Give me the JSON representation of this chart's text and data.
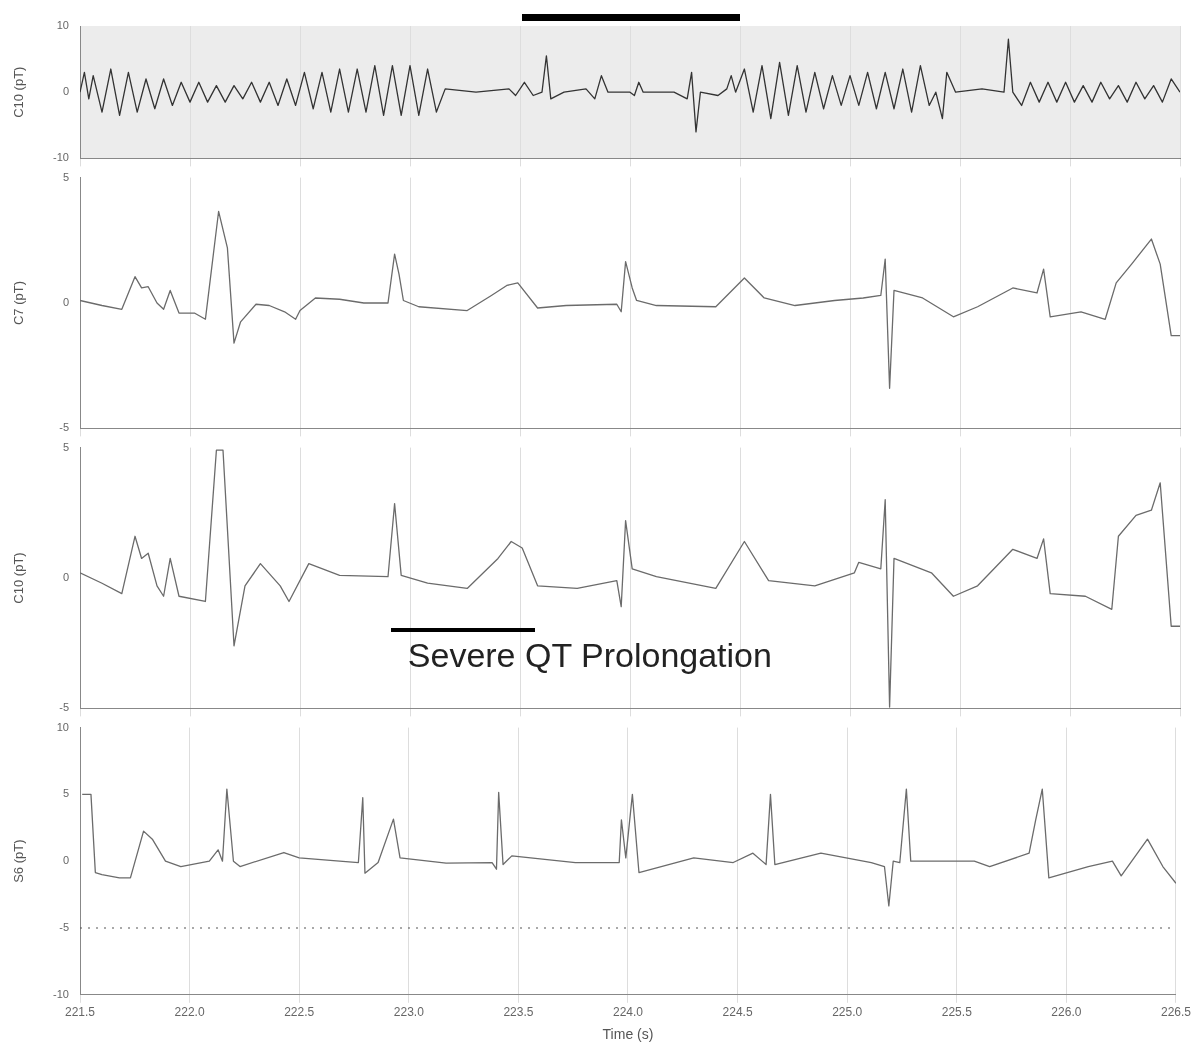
{
  "chart_data": [
    {
      "type": "line",
      "ylabel": "C10 (pT)",
      "xlim": [
        221.5,
        226.5
      ],
      "ylim": [
        -10,
        10
      ],
      "yticks": [
        -10,
        0,
        10
      ],
      "tick_labels": "y",
      "grid": "x",
      "xticks": [
        221.5,
        222,
        222.5,
        223,
        223.5,
        224,
        224.5,
        225,
        225.5,
        226,
        226.5
      ],
      "series": [
        {
          "color": "#333333",
          "x": [
            221.5,
            221.52,
            221.54,
            221.56,
            221.6,
            221.64,
            221.68,
            221.72,
            221.76,
            221.8,
            221.84,
            221.88,
            221.92,
            221.96,
            222.0,
            222.04,
            222.08,
            222.12,
            222.16,
            222.2,
            222.24,
            222.28,
            222.32,
            222.36,
            222.4,
            222.44,
            222.48,
            222.52,
            222.56,
            222.6,
            222.64,
            222.68,
            222.72,
            222.76,
            222.8,
            222.84,
            222.88,
            222.92,
            222.96,
            223.0,
            223.04,
            223.08,
            223.12,
            223.16,
            223.3,
            223.45,
            223.48,
            223.52,
            223.56,
            223.6,
            223.62,
            223.64,
            223.7,
            223.8,
            223.84,
            223.87,
            223.9,
            224.0,
            224.02,
            224.04,
            224.06,
            224.2,
            224.26,
            224.28,
            224.3,
            224.32,
            224.4,
            224.44,
            224.46,
            224.48,
            224.52,
            224.56,
            224.6,
            224.64,
            224.68,
            224.72,
            224.76,
            224.8,
            224.84,
            224.88,
            224.92,
            224.96,
            225.0,
            225.04,
            225.08,
            225.12,
            225.16,
            225.2,
            225.24,
            225.28,
            225.32,
            225.36,
            225.39,
            225.42,
            225.44,
            225.48,
            225.6,
            225.7,
            225.72,
            225.74,
            225.78,
            225.82,
            225.86,
            225.9,
            225.94,
            225.98,
            226.02,
            226.06,
            226.1,
            226.14,
            226.18,
            226.22,
            226.26,
            226.3,
            226.34,
            226.38,
            226.42,
            226.46,
            226.5
          ],
          "values": [
            0,
            3,
            -1,
            2.5,
            -3,
            3.5,
            -3.5,
            3,
            -3,
            2,
            -2.5,
            2,
            -2,
            1.5,
            -1.5,
            1.5,
            -1.5,
            1,
            -1.5,
            1,
            -1,
            1.5,
            -1.5,
            1.5,
            -2,
            2,
            -2,
            3,
            -2.5,
            3,
            -3,
            3.5,
            -3,
            3.5,
            -3,
            4,
            -3.5,
            4,
            -3.5,
            4,
            -3.5,
            3.5,
            -3,
            0.5,
            0,
            0.5,
            -0.5,
            1.5,
            -0.5,
            0,
            5.5,
            -1,
            0,
            0.5,
            -1,
            2.5,
            0,
            0,
            -0.5,
            1.5,
            0,
            0,
            -1,
            3,
            -6,
            0,
            -0.5,
            0.5,
            2.5,
            0,
            3.5,
            -3,
            4,
            -4,
            4.5,
            -3.5,
            4,
            -3,
            3,
            -2.5,
            2.5,
            -2,
            2.5,
            -2,
            3,
            -2.5,
            3,
            -2.5,
            3.5,
            -3,
            4,
            -2,
            0,
            -4,
            3,
            0,
            0.5,
            0,
            8,
            0,
            -2,
            1.5,
            -1.5,
            1.5,
            -1.5,
            1.5,
            -1.5,
            1,
            -1.5,
            1.5,
            -1,
            1,
            -1.5,
            1.5,
            -1,
            1,
            -1.5,
            2,
            0
          ]
        }
      ]
    },
    {
      "type": "line",
      "ylabel": "C7 (pT)",
      "xlim": [
        221.5,
        226.5
      ],
      "ylim": [
        -5,
        5
      ],
      "yticks": [
        -5,
        0,
        5
      ],
      "tick_labels": "y",
      "grid": "x",
      "xticks": [
        221.5,
        222,
        222.5,
        223,
        223.5,
        224,
        224.5,
        225,
        225.5,
        226,
        226.5
      ],
      "series": [
        {
          "color": "#6b6b6b",
          "x": [
            221.5,
            221.6,
            221.69,
            221.75,
            221.78,
            221.81,
            221.85,
            221.88,
            221.91,
            221.95,
            222.02,
            222.07,
            222.13,
            222.17,
            222.2,
            222.23,
            222.3,
            222.36,
            222.43,
            222.48,
            222.5,
            222.57,
            222.68,
            222.79,
            222.9,
            222.93,
            222.95,
            222.97,
            223.04,
            223.26,
            223.37,
            223.44,
            223.49,
            223.58,
            223.71,
            223.94,
            223.96,
            223.98,
            224.01,
            224.03,
            224.12,
            224.39,
            224.52,
            224.61,
            224.75,
            224.93,
            225.06,
            225.14,
            225.16,
            225.18,
            225.2,
            225.33,
            225.47,
            225.58,
            225.74,
            225.85,
            225.88,
            225.91,
            226.05,
            226.16,
            226.21,
            226.28,
            226.37,
            226.41,
            226.46,
            226.5
          ],
          "values": [
            0.1,
            -0.1,
            -0.25,
            1.05,
            0.6,
            0.65,
            0,
            -0.25,
            0.5,
            -0.4,
            -0.4,
            -0.65,
            3.65,
            2.2,
            -1.6,
            -0.75,
            -0.05,
            -0.1,
            -0.35,
            -0.65,
            -0.3,
            0.2,
            0.15,
            0,
            0,
            1.95,
            1.15,
            0.1,
            -0.15,
            -0.3,
            0.3,
            0.7,
            0.8,
            -0.2,
            -0.1,
            -0.05,
            -0.35,
            1.65,
            0.6,
            0.1,
            -0.1,
            -0.15,
            1,
            0.2,
            -0.1,
            0.1,
            0.2,
            0.3,
            1.75,
            -3.4,
            0.5,
            0.2,
            -0.55,
            -0.15,
            0.6,
            0.4,
            1.35,
            -0.55,
            -0.35,
            -0.65,
            0.8,
            1.55,
            2.55,
            1.55,
            -1.3,
            -1.3
          ]
        }
      ]
    },
    {
      "type": "line",
      "ylabel": "C10 (pT)",
      "xlim": [
        221.5,
        226.5
      ],
      "ylim": [
        -5,
        5
      ],
      "yticks": [
        -5,
        0,
        5
      ],
      "tick_labels": "y",
      "grid": "x",
      "xticks": [
        221.5,
        222,
        222.5,
        223,
        223.5,
        224,
        224.5,
        225,
        225.5,
        226,
        226.5
      ],
      "annotations": [
        "Severe QT Prolongation"
      ],
      "series": [
        {
          "color": "#6b6b6b",
          "x": [
            221.5,
            221.6,
            221.69,
            221.75,
            221.78,
            221.81,
            221.85,
            221.88,
            221.91,
            221.95,
            222.07,
            222.12,
            222.15,
            222.2,
            222.25,
            222.32,
            222.41,
            222.45,
            222.54,
            222.68,
            222.9,
            222.93,
            222.96,
            223.08,
            223.26,
            223.4,
            223.46,
            223.51,
            223.58,
            223.76,
            223.94,
            223.96,
            223.98,
            224.01,
            224.12,
            224.39,
            224.52,
            224.63,
            224.84,
            225.02,
            225.04,
            225.14,
            225.16,
            225.18,
            225.2,
            225.37,
            225.47,
            225.58,
            225.74,
            225.85,
            225.88,
            225.91,
            226.07,
            226.19,
            226.22,
            226.3,
            226.37,
            226.41,
            226.46,
            226.5
          ],
          "values": [
            0.2,
            -0.2,
            -0.6,
            1.6,
            0.75,
            0.95,
            -0.3,
            -0.7,
            0.75,
            -0.7,
            -0.9,
            4.9,
            4.9,
            -2.6,
            -0.3,
            0.55,
            -0.3,
            -0.9,
            0.55,
            0.1,
            0.05,
            2.85,
            0.1,
            -0.2,
            -0.4,
            0.75,
            1.4,
            1.15,
            -0.3,
            -0.4,
            -0.1,
            -1.1,
            2.2,
            0.35,
            0.05,
            -0.4,
            1.4,
            -0.1,
            -0.3,
            0.2,
            0.6,
            0.35,
            3,
            -4.95,
            0.75,
            0.2,
            -0.7,
            -0.3,
            1.1,
            0.75,
            1.5,
            -0.6,
            -0.7,
            -1.2,
            1.6,
            2.4,
            2.6,
            3.65,
            -1.85,
            -1.85
          ]
        }
      ]
    },
    {
      "type": "line",
      "ylabel": "S6 (pT)",
      "xlabel": "Time (s)",
      "xlim": [
        221.5,
        226.5
      ],
      "ylim": [
        -10,
        10
      ],
      "yticks": [
        -10,
        -5,
        0,
        5,
        10
      ],
      "grid": "x",
      "xticks": [
        {
          "value": 221.5,
          "label": "221.5"
        },
        {
          "value": 222,
          "label": "222.0"
        },
        {
          "value": 222.5,
          "label": "222.5"
        },
        {
          "value": 223,
          "label": "223.0"
        },
        {
          "value": 223.5,
          "label": "223.5"
        },
        {
          "value": 224,
          "label": "224.0"
        },
        {
          "value": 224.5,
          "label": "224.5"
        },
        {
          "value": 225,
          "label": "225.0"
        },
        {
          "value": 225.5,
          "label": "225.5"
        },
        {
          "value": 226,
          "label": "226.0"
        },
        {
          "value": 226.5,
          "label": "226.5"
        }
      ],
      "ref_lines": [
        {
          "axis": "y",
          "value": -5,
          "color": "#555555",
          "line_style": "dotted"
        }
      ],
      "series": [
        {
          "color": "#6b6b6b",
          "x": [
            221.51,
            221.55,
            221.57,
            221.6,
            221.68,
            221.73,
            221.79,
            221.83,
            221.89,
            221.96,
            222.09,
            222.13,
            222.15,
            222.17,
            222.2,
            222.23,
            222.43,
            222.5,
            222.77,
            222.79,
            222.8,
            222.86,
            222.93,
            222.96,
            223.17,
            223.38,
            223.4,
            223.41,
            223.43,
            223.47,
            223.76,
            223.96,
            223.97,
            223.99,
            224.02,
            224.05,
            224.3,
            224.48,
            224.57,
            224.63,
            224.65,
            224.67,
            224.88,
            225.11,
            225.17,
            225.19,
            225.21,
            225.24,
            225.27,
            225.29,
            225.58,
            225.65,
            225.83,
            225.86,
            225.89,
            225.92,
            226.1,
            226.21,
            226.25,
            226.37,
            226.44,
            226.5
          ],
          "values": [
            5,
            5,
            -0.85,
            -1,
            -1.25,
            -1.25,
            2.25,
            1.65,
            0,
            -0.4,
            0,
            0.85,
            0,
            5.4,
            0,
            -0.4,
            0.65,
            0.25,
            -0.1,
            4.75,
            -0.9,
            -0.1,
            3.15,
            0.25,
            -0.15,
            -0.1,
            -0.6,
            5.15,
            -0.25,
            0.4,
            -0.1,
            -0.1,
            3.1,
            0.25,
            5,
            -0.85,
            0.25,
            -0.1,
            0.6,
            -0.25,
            5,
            -0.25,
            0.6,
            -0.1,
            -0.4,
            -3.35,
            0,
            -0.1,
            5.4,
            0,
            0,
            -0.4,
            0.6,
            3.1,
            5.4,
            -1.25,
            -0.4,
            0,
            -1.1,
            1.65,
            -0.4,
            -1.65
          ]
        }
      ]
    }
  ]
}
